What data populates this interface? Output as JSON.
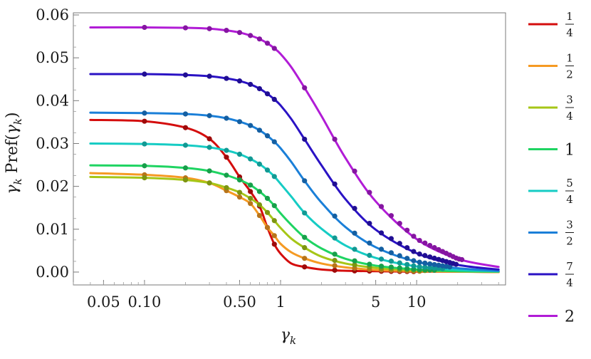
{
  "chart_data": {
    "type": "line",
    "xscale": "log",
    "xlabel": "γk",
    "ylabel": "γk Pref(γk)",
    "xlim": [
      0.03,
      45
    ],
    "ylim": [
      -0.003,
      0.0605
    ],
    "xticks": [
      {
        "value": 0.05,
        "label": "0.05"
      },
      {
        "value": 0.1,
        "label": "0.10"
      },
      {
        "value": 0.5,
        "label": "0.50"
      },
      {
        "value": 1,
        "label": "1"
      },
      {
        "value": 5,
        "label": "5"
      },
      {
        "value": 10,
        "label": "10"
      }
    ],
    "yticks": [
      {
        "value": 0.0,
        "label": "0.00"
      },
      {
        "value": 0.01,
        "label": "0.01"
      },
      {
        "value": 0.02,
        "label": "0.02"
      },
      {
        "value": 0.03,
        "label": "0.03"
      },
      {
        "value": 0.04,
        "label": "0.04"
      },
      {
        "value": 0.05,
        "label": "0.05"
      },
      {
        "value": 0.06,
        "label": "0.06"
      }
    ],
    "legend_position": "right",
    "series": [
      {
        "name": "1/4",
        "num": "1",
        "den": "4",
        "color": "#d40d0d",
        "x": [
          0.04,
          0.1,
          0.2,
          0.3,
          0.4,
          0.5,
          0.6,
          0.7,
          0.8,
          0.9,
          1.0,
          1.2,
          1.5,
          2,
          3,
          5,
          10,
          20,
          40
        ],
        "y": [
          0.0355,
          0.0352,
          0.0337,
          0.0311,
          0.0268,
          0.0222,
          0.0188,
          0.0154,
          0.0104,
          0.0065,
          0.0043,
          0.002,
          0.0012,
          0.0006,
          0.0003,
          0.0002,
          0.0001,
          0.0001,
          0.0
        ]
      },
      {
        "name": "1/2",
        "num": "1",
        "den": "2",
        "color": "#f59a23",
        "x": [
          0.04,
          0.1,
          0.2,
          0.3,
          0.4,
          0.5,
          0.6,
          0.7,
          0.8,
          0.9,
          1.0,
          1.2,
          1.5,
          2,
          3,
          5,
          10,
          20,
          40
        ],
        "y": [
          0.0231,
          0.0227,
          0.022,
          0.0208,
          0.019,
          0.0175,
          0.016,
          0.0132,
          0.0104,
          0.0085,
          0.0066,
          0.0046,
          0.0032,
          0.002,
          0.0011,
          0.0005,
          0.0002,
          0.0001,
          0.0
        ]
      },
      {
        "name": "3/4",
        "num": "3",
        "den": "4",
        "color": "#a6c617",
        "x": [
          0.04,
          0.1,
          0.2,
          0.3,
          0.4,
          0.5,
          0.6,
          0.7,
          0.8,
          0.9,
          1.0,
          1.2,
          1.5,
          2,
          3,
          5,
          10,
          20,
          40
        ],
        "y": [
          0.0222,
          0.022,
          0.0215,
          0.0208,
          0.0197,
          0.0186,
          0.0172,
          0.0157,
          0.0139,
          0.012,
          0.0103,
          0.0078,
          0.0057,
          0.0036,
          0.002,
          0.001,
          0.0004,
          0.0002,
          0.0001
        ]
      },
      {
        "name": "1",
        "num": "1",
        "den": "",
        "color": "#1fd462",
        "x": [
          0.04,
          0.1,
          0.2,
          0.3,
          0.4,
          0.5,
          0.6,
          0.7,
          0.8,
          0.9,
          1.0,
          1.2,
          1.5,
          2,
          3,
          5,
          10,
          20,
          40
        ],
        "y": [
          0.0249,
          0.0248,
          0.0243,
          0.0236,
          0.0226,
          0.0215,
          0.0203,
          0.0188,
          0.0172,
          0.0155,
          0.0137,
          0.011,
          0.0081,
          0.0055,
          0.0031,
          0.0015,
          0.0006,
          0.0002,
          0.0001
        ]
      },
      {
        "name": "5/4",
        "num": "5",
        "den": "4",
        "color": "#16ccc4",
        "x": [
          0.04,
          0.1,
          0.2,
          0.3,
          0.4,
          0.5,
          0.6,
          0.7,
          0.8,
          0.9,
          1.0,
          1.2,
          1.5,
          2,
          3,
          5,
          10,
          20,
          40
        ],
        "y": [
          0.03,
          0.0299,
          0.0296,
          0.0291,
          0.0284,
          0.0275,
          0.0264,
          0.0252,
          0.0238,
          0.0223,
          0.0206,
          0.0176,
          0.0138,
          0.0101,
          0.0062,
          0.0033,
          0.0013,
          0.0005,
          0.0002
        ]
      },
      {
        "name": "3/2",
        "num": "3",
        "den": "2",
        "color": "#1a7fd8",
        "x": [
          0.04,
          0.1,
          0.2,
          0.3,
          0.4,
          0.5,
          0.6,
          0.7,
          0.8,
          0.9,
          1.0,
          1.2,
          1.5,
          2,
          3,
          5,
          10,
          20,
          40
        ],
        "y": [
          0.0372,
          0.0371,
          0.0369,
          0.0365,
          0.0359,
          0.0351,
          0.0342,
          0.0331,
          0.0318,
          0.0304,
          0.0289,
          0.0257,
          0.0213,
          0.0162,
          0.0105,
          0.0058,
          0.0024,
          0.0009,
          0.0003
        ]
      },
      {
        "name": "7/4",
        "num": "7",
        "den": "4",
        "color": "#2a12c4",
        "x": [
          0.04,
          0.1,
          0.2,
          0.3,
          0.4,
          0.5,
          0.6,
          0.7,
          0.8,
          0.9,
          1.0,
          1.2,
          1.5,
          2,
          3,
          5,
          10,
          20,
          40
        ],
        "y": [
          0.0462,
          0.0462,
          0.046,
          0.0457,
          0.0452,
          0.0446,
          0.0438,
          0.0428,
          0.0416,
          0.0403,
          0.0389,
          0.0357,
          0.031,
          0.0249,
          0.017,
          0.0099,
          0.0044,
          0.0017,
          0.0006
        ]
      },
      {
        "name": "2",
        "num": "2",
        "den": "",
        "color": "#b11cd6",
        "x": [
          0.04,
          0.1,
          0.2,
          0.3,
          0.4,
          0.5,
          0.6,
          0.7,
          0.8,
          0.9,
          1.0,
          1.2,
          1.5,
          2,
          3,
          5,
          10,
          20,
          40
        ],
        "y": [
          0.0571,
          0.0571,
          0.057,
          0.0568,
          0.0564,
          0.0559,
          0.0552,
          0.0544,
          0.0534,
          0.0522,
          0.0509,
          0.0478,
          0.043,
          0.0364,
          0.0266,
          0.0165,
          0.0077,
          0.0031,
          0.0012
        ]
      }
    ],
    "markers": {
      "1/4": [
        0.1,
        0.2,
        0.3,
        0.4,
        0.5,
        0.6,
        0.7,
        0.8,
        0.9,
        1.5,
        2.5,
        3.5,
        4.5,
        5.5,
        6.5,
        7.5,
        8.5,
        9.5
      ],
      "1/2": [
        0.1,
        0.2,
        0.3,
        0.4,
        0.5,
        0.6,
        0.7,
        0.8,
        0.9,
        1.5,
        2.5,
        3.5,
        4.5,
        5.5,
        6.5,
        7.5,
        8.5,
        9.5,
        10.5
      ],
      "3/4": [
        0.1,
        0.2,
        0.3,
        0.4,
        0.5,
        0.6,
        0.7,
        0.8,
        0.9,
        1.5,
        2.5,
        3.5,
        4.5,
        5.5,
        6.5,
        7.5,
        8.5,
        9.5,
        10.5,
        11.5
      ],
      "1": [
        0.1,
        0.2,
        0.3,
        0.4,
        0.5,
        0.6,
        0.7,
        0.8,
        0.9,
        1.5,
        2.5,
        3.5,
        4.5,
        5.5,
        6.5,
        7.5,
        8.5,
        9.5,
        10.5,
        11.5,
        12.5,
        13.5
      ],
      "5/4": [
        0.1,
        0.2,
        0.3,
        0.4,
        0.5,
        0.6,
        0.7,
        0.8,
        0.9,
        1.5,
        2.5,
        3.5,
        4.5,
        5.5,
        6.5,
        7.5,
        8.5,
        9.5,
        10.5,
        11.5,
        12.5,
        13.5,
        14.5,
        15.5
      ],
      "3/2": [
        0.1,
        0.2,
        0.3,
        0.4,
        0.5,
        0.6,
        0.7,
        0.8,
        0.9,
        1.5,
        2.5,
        3.5,
        4.5,
        5.5,
        6.5,
        7.5,
        8.5,
        9.5,
        10.5,
        11.5,
        12.5,
        13.5,
        14.5,
        15.5,
        16.5,
        17.5
      ],
      "7/4": [
        0.1,
        0.2,
        0.3,
        0.4,
        0.5,
        0.6,
        0.7,
        0.8,
        0.9,
        1.5,
        2.5,
        3.5,
        4.5,
        5.5,
        6.5,
        7.5,
        8.5,
        9.5,
        10.5,
        11.5,
        12.5,
        13.5,
        14.5,
        15.5,
        16.5,
        17.5,
        18.5,
        19.5
      ],
      "2": [
        0.1,
        0.2,
        0.3,
        0.4,
        0.5,
        0.6,
        0.7,
        0.8,
        0.9,
        1.5,
        2.5,
        3.5,
        4.5,
        5.5,
        6.5,
        7.5,
        8.5,
        9.5,
        10.5,
        11.5,
        12.5,
        13.5,
        14.5,
        15.5,
        16.5,
        17.5,
        18.5,
        19.5,
        20.5,
        21.5
      ]
    }
  }
}
